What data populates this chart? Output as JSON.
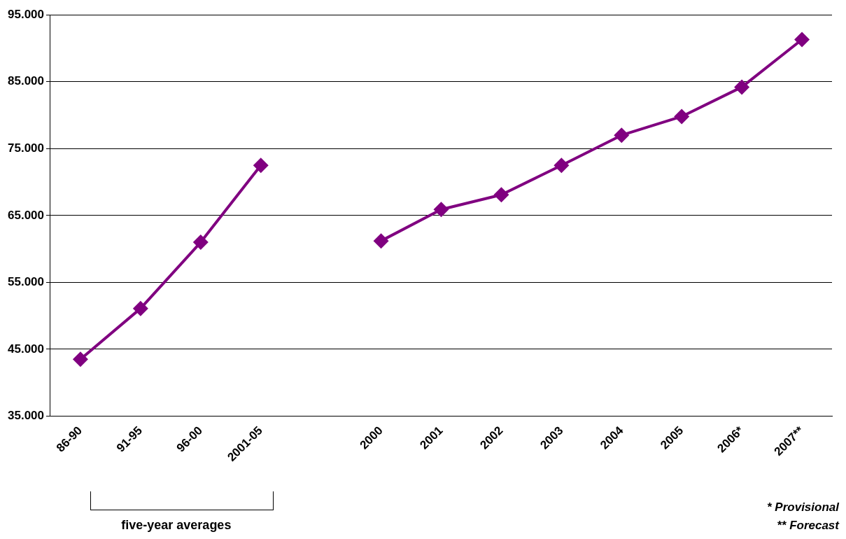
{
  "chart_data": {
    "type": "line",
    "categories": [
      "86-90",
      "91-95",
      "96-00",
      "2001-05",
      null,
      "2000",
      "2001",
      "2002",
      "2003",
      "2004",
      "2005",
      "2006*",
      "2007**"
    ],
    "series": [
      {
        "color": "#800080",
        "values": [
          43500,
          51100,
          61000,
          72500,
          null,
          61200,
          65900,
          68100,
          72500,
          77000,
          79800,
          84200,
          91300
        ]
      }
    ],
    "ylim": [
      35000,
      95000
    ],
    "yticks": [
      {
        "value": 35000,
        "label": "35.000"
      },
      {
        "value": 45000,
        "label": "45.000"
      },
      {
        "value": 55000,
        "label": "55.000"
      },
      {
        "value": 65000,
        "label": "65.000"
      },
      {
        "value": 75000,
        "label": "75.000"
      },
      {
        "value": 85000,
        "label": "85.000"
      },
      {
        "value": 95000,
        "label": "95.000"
      }
    ],
    "grid": "y",
    "legend": false,
    "marker": "diamond",
    "line_style": "solid",
    "annotations": [
      "five-year averages",
      "* Provisional",
      "** Forecast"
    ]
  }
}
